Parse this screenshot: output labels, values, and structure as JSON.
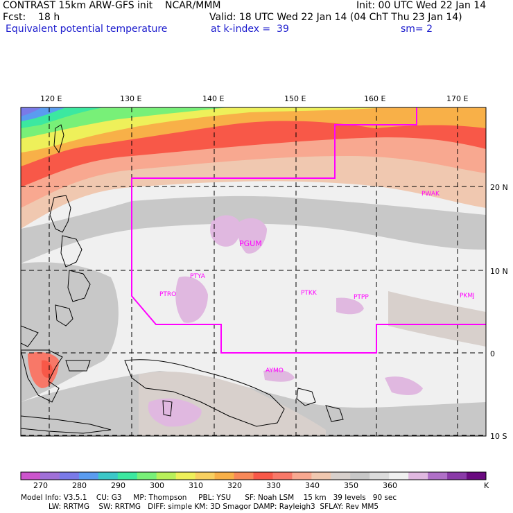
{
  "header": {
    "line1_left": "CONTRAST 15km ARW-GFS init    NCAR/MMM",
    "line1_right": "Init: 00 UTC Wed 22 Jan 14",
    "line2_left": "Fcst:    18 h",
    "line2_right": "Valid: 18 UTC Wed 22 Jan 14 (04 ChT Thu 23 Jan 14)",
    "line3_left": "Equivalent potential temperature",
    "line3_mid": "at k-index =  39",
    "line3_right": "sm= 2"
  },
  "axes": {
    "lon_labels": [
      "120 E",
      "130 E",
      "140 E",
      "150 E",
      "160 E",
      "170 E"
    ],
    "lat_labels": [
      "20 N",
      "10 N",
      "0",
      "10 S"
    ]
  },
  "stations": [
    "PWAK",
    "PGUM",
    "PTYA",
    "PTRO",
    "PTKK",
    "PTPP",
    "PKMJ",
    "AYMO"
  ],
  "colorbar": {
    "ticks": [
      "270",
      "280",
      "290",
      "300",
      "310",
      "320",
      "330",
      "340",
      "350",
      "360"
    ],
    "unit": "K",
    "colors": [
      "#cc55cc",
      "#a070d8",
      "#7a7ae8",
      "#5a9cf0",
      "#3cc8c8",
      "#3ce8a0",
      "#78f078",
      "#b8f05a",
      "#eef05a",
      "#f8d060",
      "#f8b048",
      "#f88858",
      "#f85848",
      "#f87868",
      "#f8a890",
      "#f0c8b0",
      "#d8d0cc",
      "#c8c8c8",
      "#dcdcdc",
      "#f0f0f0",
      "#e0b8e0",
      "#b070c8",
      "#8a3aa8",
      "#6a0a80"
    ]
  },
  "model_info": {
    "line1": "Model Info: V3.5.1    CU: G3     MP: Thompson     PBL: YSU      SF: Noah LSM    15 km   39 levels   90 sec",
    "line2": "LW: RRTMG    SW: RRTMG   DIFF: simple KM: 3D Smagor DAMP: Rayleigh3  SFLAY: Rev MM5"
  },
  "colors": {
    "boundary": "#ff00ff",
    "header_blue": "#1a1acd"
  }
}
